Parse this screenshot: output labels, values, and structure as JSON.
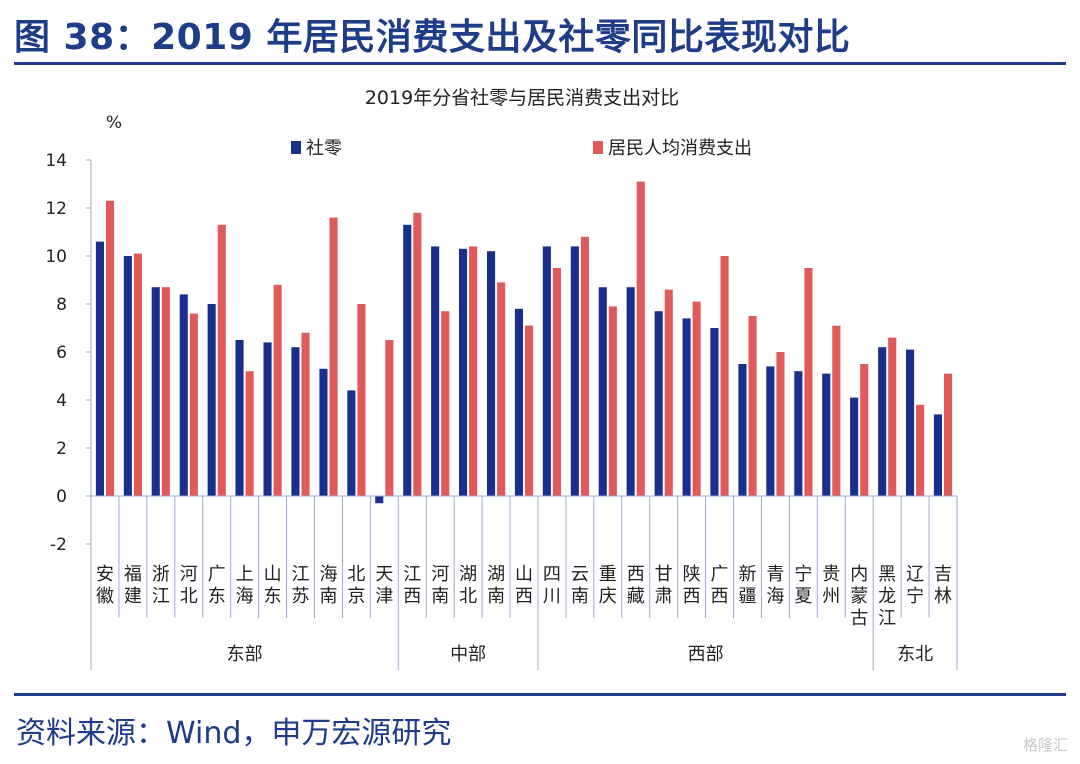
{
  "figure": {
    "title": "图 38：2019 年居民消费支出及社零同比表现对比",
    "source": "资料来源：Wind，申万宏源研究",
    "watermark": "格隆汇"
  },
  "chart_data": {
    "type": "bar",
    "title": "2019年分省社零与居民消费支出对比",
    "ylabel": "%",
    "ylim": [
      -2,
      14
    ],
    "yticks": [
      -2,
      0,
      2,
      4,
      6,
      8,
      10,
      12,
      14
    ],
    "grid": false,
    "legend_position": "top",
    "categories": [
      "安徽",
      "福建",
      "浙江",
      "河北",
      "广东",
      "上海",
      "山东",
      "江苏",
      "海南",
      "北京",
      "天津",
      "江西",
      "河南",
      "湖北",
      "湖南",
      "山西",
      "四川",
      "云南",
      "重庆",
      "西藏",
      "甘肃",
      "陕西",
      "广西",
      "新疆",
      "青海",
      "宁夏",
      "贵州",
      "内蒙古",
      "黑龙江",
      "辽宁",
      "吉林"
    ],
    "groups": [
      {
        "name": "东部",
        "count": 11
      },
      {
        "name": "中部",
        "count": 5
      },
      {
        "name": "西部",
        "count": 12
      },
      {
        "name": "东北",
        "count": 3
      }
    ],
    "series": [
      {
        "name": "社零",
        "color": "#1a2e8c",
        "values": [
          10.6,
          10.0,
          8.7,
          8.4,
          8.0,
          6.5,
          6.4,
          6.2,
          5.3,
          4.4,
          -0.3,
          11.3,
          10.4,
          10.3,
          10.2,
          7.8,
          10.4,
          10.4,
          8.7,
          8.7,
          7.7,
          7.4,
          7.0,
          5.5,
          5.4,
          5.2,
          5.1,
          4.1,
          6.2,
          6.1,
          3.4
        ]
      },
      {
        "name": "居民人均消费支出",
        "color": "#e05a5a",
        "values": [
          12.3,
          10.1,
          8.7,
          7.6,
          11.3,
          5.2,
          8.8,
          6.8,
          11.6,
          8.0,
          6.5,
          11.8,
          7.7,
          10.4,
          8.9,
          7.1,
          9.5,
          10.8,
          7.9,
          13.1,
          8.6,
          8.1,
          10.0,
          7.5,
          6.0,
          9.5,
          7.1,
          5.5,
          6.6,
          3.8,
          5.1
        ]
      }
    ]
  }
}
